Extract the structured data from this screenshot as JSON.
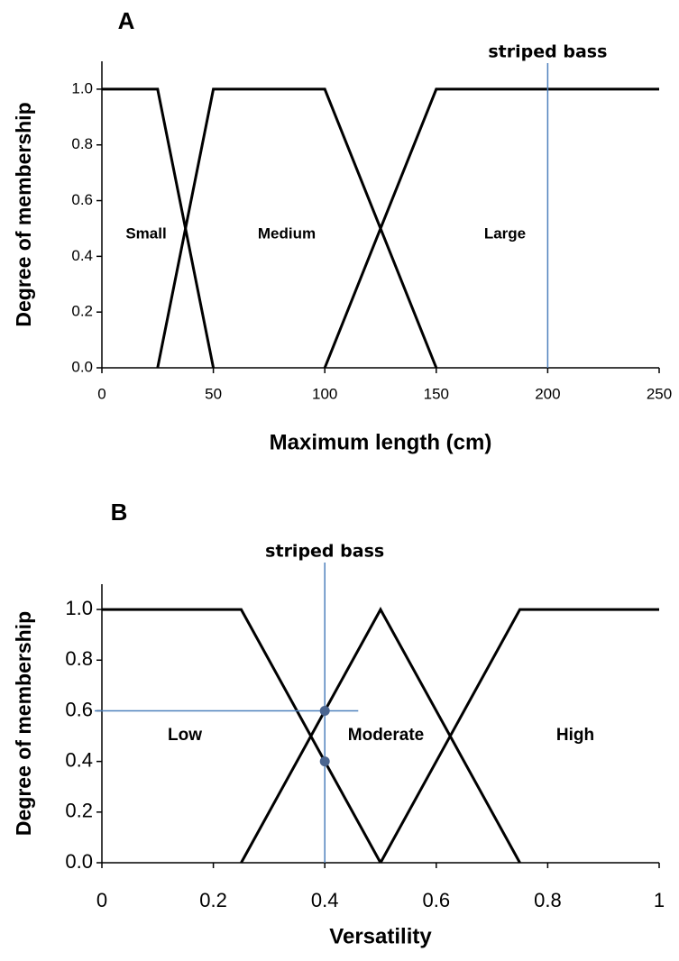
{
  "chart_data": [
    {
      "type": "line",
      "title": "A",
      "x_label": "Maximum length (cm)",
      "y_label": "Degree of membership",
      "xlim": [
        0,
        250
      ],
      "xticks": [
        0,
        50,
        100,
        150,
        200,
        250
      ],
      "ylim": [
        0,
        1.1
      ],
      "yticks": [
        {
          "value": 0,
          "label": "0.0"
        },
        {
          "value": 0.2,
          "label": "0.2"
        },
        {
          "value": 0.4,
          "label": "0.4"
        },
        {
          "value": 0.6,
          "label": "0.6"
        },
        {
          "value": 0.8,
          "label": "0.8"
        },
        {
          "value": 1,
          "label": "1.0"
        }
      ],
      "series": [
        {
          "name": "Small",
          "color": "#000000",
          "x": [
            0,
            25,
            50
          ],
          "values": [
            1,
            1,
            0
          ]
        },
        {
          "name": "Medium",
          "color": "#000000",
          "x": [
            25,
            50,
            100,
            150
          ],
          "values": [
            0,
            1,
            1,
            0
          ]
        },
        {
          "name": "Large",
          "color": "#000000",
          "x": [
            100,
            150,
            250
          ],
          "values": [
            0,
            1,
            1
          ]
        }
      ],
      "marker": {
        "label": "striped bass",
        "x": 200,
        "color": "#4f81bd"
      }
    },
    {
      "type": "line",
      "title": "B",
      "x_label": "Versatility",
      "y_label": "Degree of membership",
      "xlim": [
        0,
        1
      ],
      "xticks": [
        0,
        0.2,
        0.4,
        0.6,
        0.8,
        1
      ],
      "ylim": [
        0,
        1.1
      ],
      "yticks": [
        {
          "value": 0,
          "label": "0.0"
        },
        {
          "value": 0.2,
          "label": "0.2"
        },
        {
          "value": 0.4,
          "label": "0.4"
        },
        {
          "value": 0.6,
          "label": "0.6"
        },
        {
          "value": 0.8,
          "label": "0.8"
        },
        {
          "value": 1,
          "label": "1.0"
        }
      ],
      "series": [
        {
          "name": "Low",
          "color": "#000000",
          "x": [
            0,
            0.25,
            0.5
          ],
          "values": [
            1,
            1,
            0
          ]
        },
        {
          "name": "Moderate",
          "color": "#000000",
          "x": [
            0.25,
            0.5,
            0.75
          ],
          "values": [
            0,
            1,
            0
          ]
        },
        {
          "name": "High",
          "color": "#000000",
          "x": [
            0.5,
            0.75,
            1
          ],
          "values": [
            0,
            1,
            1
          ]
        }
      ],
      "marker": {
        "label": "striped bass",
        "x": 0.4,
        "color": "#4f81bd",
        "hline": 0.6
      },
      "points": {
        "x": [
          0.4,
          0.4
        ],
        "values": [
          0.6,
          0.4
        ],
        "color": "#4a6590"
      }
    }
  ]
}
